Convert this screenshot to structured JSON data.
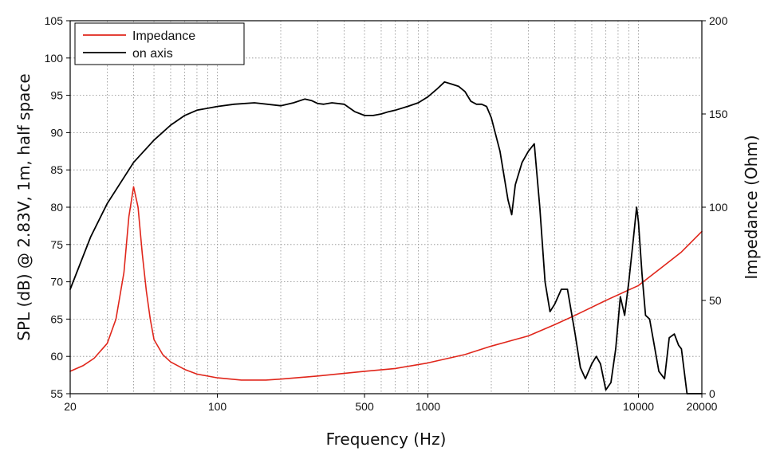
{
  "chart_data": {
    "type": "line",
    "xlabel": "Frequency (Hz)",
    "ylabel_left": "SPL (dB) @ 2.83V, 1m, half space",
    "ylabel_right": "Impedance (Ohm)",
    "x_scale": "log",
    "xlim": [
      20,
      20000
    ],
    "ylim_left": [
      55,
      105
    ],
    "ylim_right": [
      0,
      200
    ],
    "x_ticks": [
      {
        "value": 20,
        "label": "20"
      },
      {
        "value": 100,
        "label": "100"
      },
      {
        "value": 500,
        "label": "500"
      },
      {
        "value": 1000,
        "label": "1000"
      },
      {
        "value": 10000,
        "label": "10000"
      },
      {
        "value": 20000,
        "label": "20000"
      }
    ],
    "y_ticks_left": [
      "55",
      "60",
      "65",
      "70",
      "75",
      "80",
      "85",
      "90",
      "95",
      "100",
      "105"
    ],
    "y_ticks_right": [
      "0",
      "50",
      "100",
      "150",
      "200"
    ],
    "grid": true,
    "legend_position": "top-left",
    "series": [
      {
        "name": "Impedance",
        "axis": "right",
        "color": "#e0261b",
        "x": [
          20,
          23,
          26,
          30,
          33,
          36,
          38,
          40,
          42,
          44,
          46,
          48,
          50,
          55,
          60,
          70,
          80,
          100,
          130,
          170,
          200,
          300,
          500,
          700,
          1000,
          1500,
          2000,
          3000,
          4000,
          5000,
          7000,
          10000,
          13000,
          16000,
          20000
        ],
        "y": [
          12,
          15,
          19,
          27,
          40,
          65,
          95,
          111,
          100,
          75,
          55,
          40,
          29,
          21,
          17,
          13,
          10.5,
          8.5,
          7.3,
          7.3,
          7.8,
          9.5,
          12,
          13.5,
          16.5,
          21,
          25.5,
          31,
          37,
          42,
          50,
          58,
          68,
          76,
          87
        ]
      },
      {
        "name": "on axis",
        "axis": "left",
        "color": "#000000",
        "x": [
          20,
          25,
          30,
          40,
          50,
          60,
          70,
          80,
          100,
          120,
          150,
          200,
          230,
          260,
          280,
          300,
          320,
          350,
          400,
          450,
          500,
          550,
          600,
          650,
          700,
          800,
          900,
          1000,
          1100,
          1200,
          1300,
          1400,
          1500,
          1600,
          1700,
          1800,
          1900,
          2000,
          2200,
          2400,
          2500,
          2600,
          2800,
          3000,
          3200,
          3400,
          3600,
          3800,
          4000,
          4300,
          4600,
          5000,
          5300,
          5600,
          6000,
          6300,
          6600,
          7000,
          7400,
          7800,
          8200,
          8600,
          9000,
          9400,
          9800,
          10000,
          10400,
          10800,
          11300,
          11800,
          12500,
          13300,
          14000,
          14800,
          15500,
          16000,
          17000,
          18000,
          19000,
          20000
        ],
        "y": [
          69,
          76,
          80.5,
          86,
          89,
          91,
          92.3,
          93,
          93.5,
          93.8,
          94,
          93.6,
          94,
          94.5,
          94.3,
          93.9,
          93.8,
          94,
          93.8,
          92.8,
          92.3,
          92.3,
          92.5,
          92.8,
          93,
          93.5,
          94,
          94.8,
          95.8,
          96.8,
          96.5,
          96.2,
          95.5,
          94.2,
          93.8,
          93.8,
          93.5,
          92,
          87.5,
          81,
          79,
          83,
          86,
          87.5,
          88.5,
          80,
          70,
          66,
          67,
          69,
          69,
          63,
          58.5,
          57,
          59,
          60,
          59,
          55.5,
          56.5,
          61,
          68,
          65.5,
          70,
          75,
          80,
          78,
          71,
          65.5,
          65,
          62,
          58,
          57,
          62.5,
          63,
          61.5,
          61,
          55,
          53,
          53,
          53
        ]
      }
    ]
  }
}
